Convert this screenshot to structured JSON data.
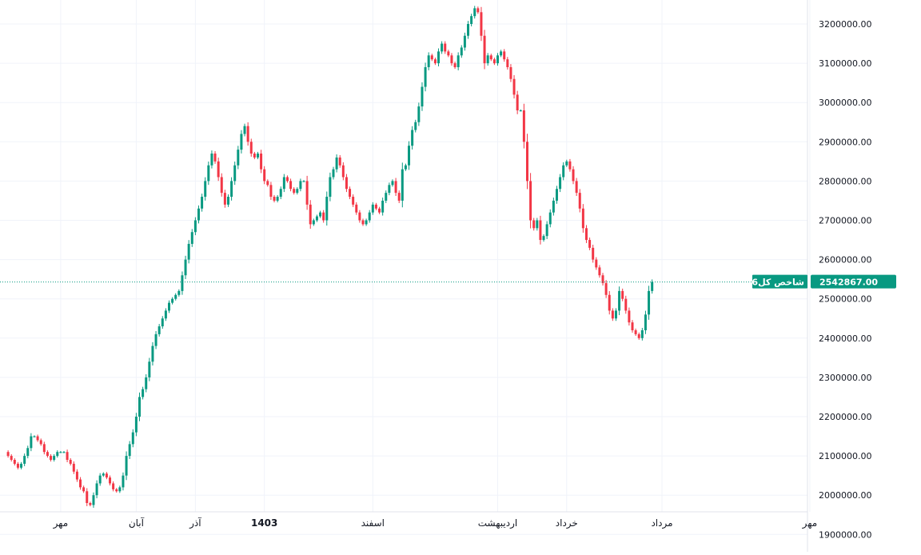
{
  "chart_data": {
    "type": "candlestick",
    "title": "",
    "xlabel": "",
    "ylabel": "",
    "ylim": [
      1900000,
      3250000
    ],
    "grid": true,
    "legend": "none",
    "y_ticks": [
      "3200000.00",
      "3100000.00",
      "3000000.00",
      "2900000.00",
      "2800000.00",
      "2700000.00",
      "2600000.00",
      "2500000.00",
      "2400000.00",
      "2300000.00",
      "2200000.00",
      "2100000.00",
      "2000000.00",
      "1900000.00"
    ],
    "x_tick_labels": [
      "مهر",
      "آبان",
      "آذر",
      "1403",
      "اسفند",
      "اردیبهشت",
      "خرداد",
      "مرداد",
      "مهر"
    ],
    "x_tick_bold": [
      false,
      false,
      false,
      true,
      false,
      false,
      false,
      false,
      false
    ],
    "x_tick_index": [
      17,
      40,
      58,
      79,
      112,
      150,
      171,
      200,
      245
    ],
    "current_price": {
      "series_name": "شاخص کل6",
      "value_label": "2542867.00",
      "value": 2542867
    },
    "colors": {
      "up": "#089981",
      "down": "#f23645",
      "grid": "#f0f3fa",
      "axis_text": "#131722"
    },
    "close_path": [
      2110000,
      2100000,
      2090000,
      2080000,
      2070000,
      2080000,
      2100000,
      2120000,
      2150000,
      2150000,
      2140000,
      2130000,
      2110000,
      2100000,
      2090000,
      2100000,
      2110000,
      2110000,
      2110000,
      2090000,
      2080000,
      2060000,
      2040000,
      2020000,
      2010000,
      1980000,
      1975000,
      2000000,
      2030000,
      2050000,
      2055000,
      2045000,
      2030000,
      2015000,
      2010000,
      2020000,
      2050000,
      2100000,
      2130000,
      2160000,
      2200000,
      2250000,
      2270000,
      2300000,
      2340000,
      2380000,
      2410000,
      2430000,
      2450000,
      2470000,
      2490000,
      2500000,
      2510000,
      2520000,
      2560000,
      2600000,
      2640000,
      2670000,
      2700000,
      2730000,
      2760000,
      2800000,
      2840000,
      2870000,
      2850000,
      2810000,
      2770000,
      2740000,
      2760000,
      2800000,
      2840000,
      2880000,
      2920000,
      2940000,
      2900000,
      2870000,
      2860000,
      2870000,
      2830000,
      2800000,
      2790000,
      2760000,
      2750000,
      2760000,
      2780000,
      2810000,
      2800000,
      2780000,
      2770000,
      2780000,
      2800000,
      2800000,
      2740000,
      2690000,
      2700000,
      2710000,
      2720000,
      2700000,
      2760000,
      2810000,
      2830000,
      2860000,
      2840000,
      2810000,
      2780000,
      2760000,
      2740000,
      2720000,
      2700000,
      2690000,
      2700000,
      2720000,
      2740000,
      2730000,
      2720000,
      2750000,
      2770000,
      2790000,
      2800000,
      2770000,
      2750000,
      2830000,
      2840000,
      2890000,
      2930000,
      2950000,
      2990000,
      3040000,
      3090000,
      3120000,
      3110000,
      3100000,
      3130000,
      3150000,
      3130000,
      3120000,
      3100000,
      3090000,
      3120000,
      3140000,
      3170000,
      3200000,
      3220000,
      3240000,
      3230000,
      3170000,
      3100000,
      3120000,
      3110000,
      3100000,
      3120000,
      3130000,
      3110000,
      3090000,
      3060000,
      3020000,
      2980000,
      2980000,
      2900000,
      2800000,
      2700000,
      2680000,
      2700000,
      2650000,
      2660000,
      2690000,
      2720000,
      2750000,
      2780000,
      2810000,
      2840000,
      2850000,
      2830000,
      2800000,
      2770000,
      2730000,
      2680000,
      2650000,
      2630000,
      2600000,
      2580000,
      2560000,
      2540000,
      2510000,
      2470000,
      2450000,
      2470000,
      2520000,
      2500000,
      2470000,
      2440000,
      2420000,
      2410000,
      2400000,
      2420000,
      2460000,
      2520000,
      2542867
    ]
  }
}
